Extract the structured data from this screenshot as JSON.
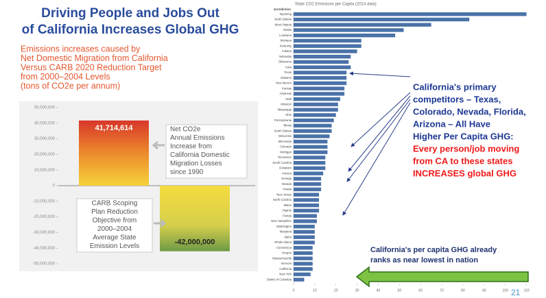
{
  "slide": {
    "title": [
      "Driving People and Jobs Out",
      "of California Increases Global GHG"
    ],
    "callout": [
      "California's primary",
      "competitors – Texas,",
      "Colorado, Nevada, Florida,",
      "Arizona – All Have",
      "Higher Per Capita GHG:"
    ],
    "callout_red": [
      "Every person/job moving",
      "from CA to these states",
      "INCREASES global GHG"
    ],
    "bottom_note": [
      "California's per capita GHG already",
      "ranks as near lowest in nation"
    ],
    "page_number": "21"
  },
  "chart_data": [
    {
      "type": "bar",
      "subtitle": [
        "Emissions increases caused by",
        "Net Domestic Migration from California",
        "Versus CARB 2020 Reduction Target",
        "from 2000–2004 Levels",
        "(tons of CO2e per annum)"
      ],
      "categories": [
        null,
        null
      ],
      "values": [
        41714614,
        -42000000
      ],
      "value_labels": [
        "41,714,614",
        "-42,000,000"
      ],
      "annotations": [
        [
          "Net CO2e",
          "Annual Emissions",
          "Increase from",
          "California Domestic",
          "Migration Losses",
          "since 1990"
        ],
        [
          "CARB Scoping",
          "Plan Reduction",
          "Objective from",
          "2000–2004",
          "Average State",
          "Emission Levels"
        ]
      ],
      "ylim": [
        -50000000,
        50000000
      ],
      "yticks": [
        {
          "value": 50000000,
          "label": "50,000,000"
        },
        {
          "value": 40000000,
          "label": "40,000,000"
        },
        {
          "value": 30000000,
          "label": "30,000,000"
        },
        {
          "value": 20000000,
          "label": "20,000,000"
        },
        {
          "value": 10000000,
          "label": "10,000,000"
        },
        0,
        {
          "value": -10000000,
          "label": "-10,000,000"
        },
        {
          "value": -20000000,
          "label": "-20,000,000"
        },
        {
          "value": -30000000,
          "label": "-30,000,000"
        },
        {
          "value": -40000000,
          "label": "-40,000,000"
        },
        {
          "value": -50000000,
          "label": "-50,000,000"
        }
      ]
    },
    {
      "type": "hbar",
      "title": "State CO2 Emissions per Capita (2014 data)",
      "category_header": "Jurisdiction",
      "categories": [
        "Wyoming",
        "North Dakota",
        "West Virginia",
        "Alaska",
        "Louisiana",
        "Montana",
        "Kentucky",
        "Indiana",
        "Nebraska",
        "Oklahoma",
        "Iowa",
        "Texas",
        "Alabama",
        "New Mexico",
        "Kansas",
        "Arkansas",
        "Utah",
        "Missouri",
        "Mississippi",
        "Ohio",
        "Pennsylvania",
        "Illinois",
        "South Dakota",
        "Wisconsin",
        "Minnesota",
        "Colorado",
        "Michigan",
        "Tennessee",
        "South Carolina",
        "Delaware",
        "Arizona",
        "Georgia",
        "Nevada",
        "Hawaii",
        "New Jersey",
        "North Carolina",
        "Maine",
        "Virginia",
        "Florida",
        "New Hampshire",
        "Washington",
        "Maryland",
        "Idaho",
        "Rhode Island",
        "Connecticut",
        "Oregon",
        "Massachusetts",
        "Vermont",
        "California",
        "New York",
        "District of Columbia"
      ],
      "values": [
        110,
        83,
        65,
        52,
        48,
        32,
        32,
        30,
        27,
        26,
        27,
        25,
        25,
        25,
        24,
        24,
        22,
        21,
        21,
        20,
        19,
        18,
        18,
        17,
        16,
        16,
        16,
        15,
        15,
        15,
        14,
        13,
        13,
        13,
        12,
        12,
        12,
        12,
        11,
        11,
        10,
        10,
        10,
        10,
        9,
        9,
        9,
        9,
        9,
        8,
        5
      ],
      "color": "#4a72a8",
      "xlim": [
        0,
        115
      ],
      "xticks": [
        0,
        10,
        20,
        30,
        40,
        50,
        60,
        70,
        80,
        90,
        100,
        110
      ]
    }
  ]
}
